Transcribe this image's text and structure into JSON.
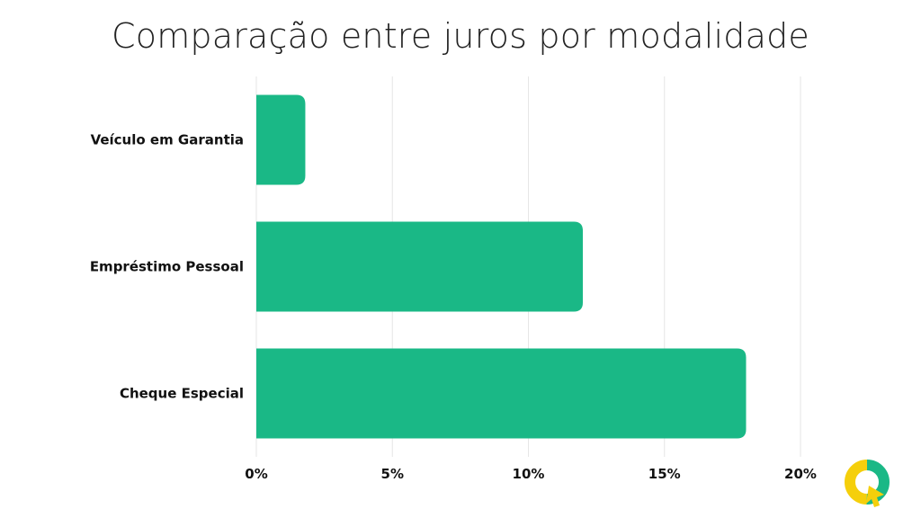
{
  "chart_data": {
    "type": "bar",
    "orientation": "horizontal",
    "title": "Comparação entre juros por modalidade",
    "categories": [
      "Veículo em Garantia",
      "Empréstimo Pessoal",
      "Cheque Especial"
    ],
    "values": [
      1.8,
      12.0,
      18.0
    ],
    "xlim": [
      0,
      20
    ],
    "xticks": [
      0,
      5,
      10,
      15,
      20
    ],
    "xtick_labels": [
      "0%",
      "5%",
      "10%",
      "15%",
      "20%"
    ],
    "xlabel": "",
    "ylabel": "",
    "grid": true,
    "legend": "none",
    "bar_color": "#1ab886"
  },
  "logo": {
    "name": "q-brand-logo",
    "colors": [
      "#f5cf0b",
      "#1ab886"
    ]
  }
}
